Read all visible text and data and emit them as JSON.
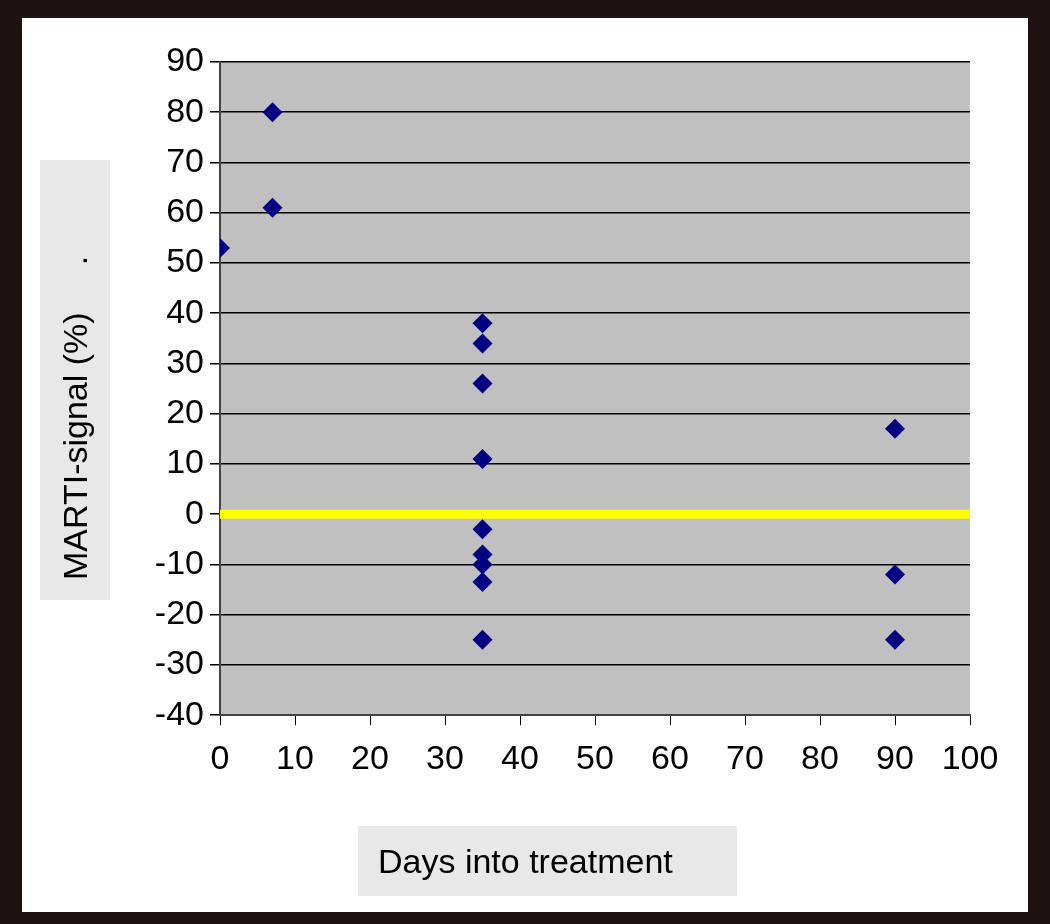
{
  "chart_data": {
    "type": "scatter",
    "xlabel": "Days into treatment",
    "ylabel": "MARTI-signal (%)     .",
    "series": [
      {
        "color": "#000080",
        "x": [
          0,
          7,
          7,
          35,
          35,
          35,
          35,
          35,
          35,
          35,
          35,
          35,
          90,
          90,
          90
        ],
        "values": [
          53,
          80,
          61,
          38,
          34,
          26,
          11,
          -3,
          -8,
          -10,
          -13.5,
          -25,
          17,
          -12,
          -25
        ]
      }
    ],
    "xlim": [
      0,
      100
    ],
    "xticks": [
      0,
      10,
      20,
      30,
      40,
      50,
      60,
      70,
      80,
      90,
      100
    ],
    "ylim": [
      -40,
      90
    ],
    "yticks": [
      -40,
      -30,
      -20,
      -10,
      0,
      10,
      20,
      30,
      40,
      50,
      60,
      70,
      80,
      90
    ],
    "grid": "y",
    "marker": "diamond",
    "legend": false,
    "ref_lines": [
      {
        "axis": "y",
        "value": 0,
        "color": "#ffff00"
      }
    ]
  }
}
